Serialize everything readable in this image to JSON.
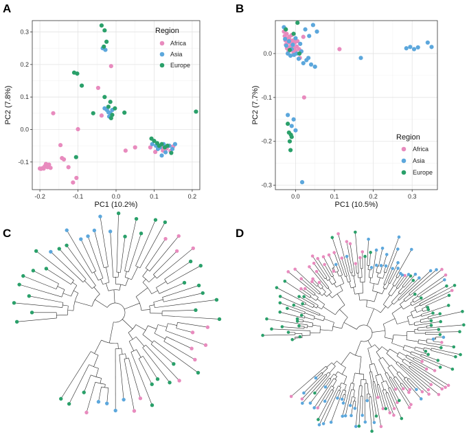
{
  "colors": {
    "Africa": "#e88bbe",
    "Asia": "#5ca7dc",
    "Europe": "#2aa06a"
  },
  "panels": {
    "a": "A",
    "b": "B",
    "c": "C",
    "d": "D"
  },
  "chart_data": [
    {
      "type": "scatter",
      "panel": "A",
      "xlabel": "PC1 (10.2%)",
      "ylabel": "PC2 (7.8%)",
      "xlim": [
        -0.22,
        0.22
      ],
      "ylim": [
        -0.185,
        0.335
      ],
      "xticks": [
        -0.2,
        -0.1,
        0.0,
        0.1,
        0.2
      ],
      "xtick_labels": [
        "-0.2",
        "-0.1",
        "0.0",
        "0.1",
        "0.2"
      ],
      "yticks": [
        -0.1,
        0.0,
        0.1,
        0.2,
        0.3
      ],
      "ytick_labels": [
        "-0.1",
        "0.0",
        "0.1",
        "0.2",
        "0.3"
      ],
      "legend": {
        "title": "Region",
        "entries": [
          "Africa",
          "Asia",
          "Europe"
        ],
        "position": "top-right"
      },
      "series": [
        {
          "name": "Africa",
          "points": [
            [
              -0.2,
              -0.12
            ],
            [
              -0.197,
              -0.121
            ],
            [
              -0.193,
              -0.119
            ],
            [
              -0.19,
              -0.12
            ],
            [
              -0.187,
              -0.113
            ],
            [
              -0.184,
              -0.106
            ],
            [
              -0.18,
              -0.116
            ],
            [
              -0.176,
              -0.108
            ],
            [
              -0.172,
              -0.118
            ],
            [
              -0.165,
              0.05
            ],
            [
              -0.146,
              -0.048
            ],
            [
              -0.142,
              -0.088
            ],
            [
              -0.137,
              -0.092
            ],
            [
              -0.125,
              -0.116
            ],
            [
              -0.113,
              -0.163
            ],
            [
              -0.104,
              -0.149
            ],
            [
              -0.1,
              0.001
            ],
            [
              -0.047,
              0.128
            ],
            [
              -0.038,
              0.043
            ],
            [
              -0.013,
              0.195
            ],
            [
              0.025,
              -0.065
            ],
            [
              0.05,
              -0.055
            ],
            [
              0.09,
              -0.055
            ],
            [
              0.103,
              -0.069
            ],
            [
              0.118,
              -0.055
            ],
            [
              0.123,
              -0.065
            ],
            [
              0.133,
              -0.058
            ],
            [
              0.143,
              -0.066
            ],
            [
              0.15,
              -0.052
            ]
          ]
        },
        {
          "name": "Asia",
          "points": [
            [
              -0.035,
              0.25
            ],
            [
              -0.028,
              0.245
            ],
            [
              -0.03,
              0.065
            ],
            [
              -0.024,
              0.06
            ],
            [
              -0.02,
              0.053
            ],
            [
              -0.015,
              0.05
            ],
            [
              -0.018,
              0.04
            ],
            [
              -0.01,
              0.06
            ],
            [
              0.095,
              -0.045
            ],
            [
              0.105,
              -0.05
            ],
            [
              0.11,
              -0.06
            ],
            [
              0.115,
              -0.055
            ],
            [
              0.12,
              -0.08
            ],
            [
              0.125,
              -0.045
            ],
            [
              0.13,
              -0.07
            ],
            [
              0.14,
              -0.05
            ],
            [
              0.148,
              -0.06
            ],
            [
              0.155,
              -0.045
            ]
          ]
        },
        {
          "name": "Europe",
          "points": [
            [
              -0.11,
              0.175
            ],
            [
              -0.102,
              0.172
            ],
            [
              -0.105,
              -0.085
            ],
            [
              -0.09,
              0.135
            ],
            [
              -0.06,
              0.05
            ],
            [
              -0.038,
              0.32
            ],
            [
              -0.03,
              0.305
            ],
            [
              -0.025,
              0.27
            ],
            [
              -0.032,
              0.255
            ],
            [
              -0.03,
              0.1
            ],
            [
              -0.02,
              0.07
            ],
            [
              -0.015,
              0.085
            ],
            [
              -0.01,
              0.045
            ],
            [
              -0.013,
              0.035
            ],
            [
              -0.003,
              0.065
            ],
            [
              0.022,
              0.052
            ],
            [
              0.093,
              -0.028
            ],
            [
              0.1,
              -0.035
            ],
            [
              0.108,
              -0.042
            ],
            [
              0.113,
              -0.05
            ],
            [
              0.12,
              -0.045
            ],
            [
              0.128,
              -0.055
            ],
            [
              0.135,
              -0.05
            ],
            [
              0.145,
              -0.072
            ],
            [
              0.21,
              0.055
            ]
          ]
        }
      ]
    },
    {
      "type": "scatter",
      "panel": "B",
      "xlabel": "PC1 (10.5%)",
      "ylabel": "PC2 (7.7%)",
      "xlim": [
        -0.052,
        0.365
      ],
      "ylim": [
        -0.31,
        0.075
      ],
      "xticks": [
        0.0,
        0.1,
        0.2,
        0.3
      ],
      "xtick_labels": [
        "0.0",
        "0.1",
        "0.2",
        "0.3"
      ],
      "yticks": [
        -0.3,
        -0.2,
        -0.1,
        0.0
      ],
      "ytick_labels": [
        "-0.3",
        "-0.2",
        "-0.1",
        "0.0"
      ],
      "legend": {
        "title": "Region",
        "entries": [
          "Africa",
          "Asia",
          "Europe"
        ],
        "position": "bottom-right"
      },
      "series": [
        {
          "name": "Africa",
          "points": [
            [
              -0.03,
              0.05
            ],
            [
              -0.028,
              0.04
            ],
            [
              -0.026,
              0.03
            ],
            [
              -0.025,
              0.02
            ],
            [
              -0.023,
              0.045
            ],
            [
              -0.022,
              0.012
            ],
            [
              -0.02,
              0.035
            ],
            [
              -0.019,
              0.025
            ],
            [
              -0.018,
              0.005
            ],
            [
              -0.016,
              0.038
            ],
            [
              -0.015,
              0.015
            ],
            [
              -0.014,
              0.03
            ],
            [
              -0.012,
              0.008
            ],
            [
              -0.011,
              0.022
            ],
            [
              -0.01,
              0.042
            ],
            [
              -0.008,
              0.018
            ],
            [
              -0.006,
              0.03
            ],
            [
              -0.005,
              0.002
            ],
            [
              -0.003,
              0.012
            ],
            [
              -0.002,
              0.025
            ],
            [
              0.0,
              0.006
            ],
            [
              0.003,
              0.016
            ],
            [
              0.005,
              0.028
            ],
            [
              0.009,
              0.01
            ],
            [
              0.011,
              -0.01
            ],
            [
              0.02,
              0.038
            ],
            [
              0.022,
              -0.1
            ],
            [
              0.113,
              0.01
            ]
          ]
        },
        {
          "name": "Asia",
          "points": [
            [
              -0.03,
              0.06
            ],
            [
              -0.027,
              0.033
            ],
            [
              -0.024,
              0.018
            ],
            [
              -0.02,
              0.0
            ],
            [
              -0.017,
              0.028
            ],
            [
              -0.013,
              -0.005
            ],
            [
              -0.01,
              0.01
            ],
            [
              -0.007,
              0.02
            ],
            [
              -0.004,
              -0.003
            ],
            [
              0.0,
              0.035
            ],
            [
              0.003,
              0.0
            ],
            [
              0.008,
              -0.012
            ],
            [
              0.012,
              0.022
            ],
            [
              0.015,
              0.005
            ],
            [
              0.02,
              -0.022
            ],
            [
              0.025,
              0.055
            ],
            [
              0.028,
              -0.015
            ],
            [
              0.033,
              -0.01
            ],
            [
              0.035,
              0.04
            ],
            [
              0.04,
              -0.025
            ],
            [
              0.045,
              0.065
            ],
            [
              0.05,
              -0.03
            ],
            [
              0.055,
              0.05
            ],
            [
              -0.02,
              -0.14
            ],
            [
              -0.01,
              -0.165
            ],
            [
              -0.005,
              -0.15
            ],
            [
              0.0,
              -0.175
            ],
            [
              0.017,
              -0.293
            ],
            [
              0.168,
              -0.01
            ],
            [
              0.285,
              0.012
            ],
            [
              0.295,
              0.015
            ],
            [
              0.305,
              0.01
            ],
            [
              0.315,
              0.014
            ],
            [
              0.34,
              0.025
            ],
            [
              0.35,
              0.015
            ]
          ]
        },
        {
          "name": "Europe",
          "points": [
            [
              -0.025,
              0.055
            ],
            [
              -0.015,
              0.008
            ],
            [
              -0.005,
              0.045
            ],
            [
              0.005,
              0.07
            ],
            [
              0.01,
              0.0
            ],
            [
              -0.02,
              -0.16
            ],
            [
              -0.017,
              -0.18
            ],
            [
              -0.015,
              -0.2
            ],
            [
              -0.012,
              -0.185
            ],
            [
              -0.01,
              -0.19
            ],
            [
              -0.013,
              -0.22
            ]
          ]
        }
      ]
    }
  ],
  "trees": [
    {
      "panel": "C",
      "description_none": ""
    },
    {
      "panel": "D",
      "description_none": ""
    }
  ]
}
